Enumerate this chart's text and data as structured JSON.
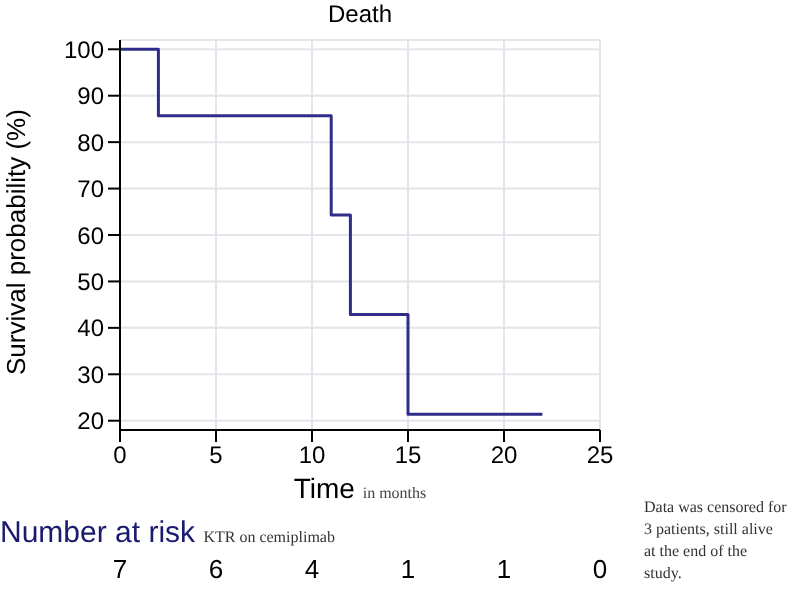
{
  "chart_data": {
    "type": "step",
    "title": "Death",
    "xlabel": "Time",
    "ylabel": "Survival probability (%)",
    "x": [
      0,
      2,
      11,
      12,
      15,
      22
    ],
    "series": [
      {
        "color": "#2e2e8a",
        "values": [
          100,
          85.7,
          64.3,
          42.9,
          21.4,
          21.4
        ]
      }
    ],
    "xlim": [
      0,
      25
    ],
    "xticks": [
      0,
      5,
      10,
      15,
      20,
      25
    ],
    "ylim": [
      18,
      102
    ],
    "yticks": [
      20,
      30,
      40,
      50,
      60,
      70,
      80,
      90,
      100
    ],
    "grid": true,
    "marker": "none",
    "annotations": [
      "in months",
      "Number at risk",
      "KTR on cemiplimab",
      "Data was censored for 3 patients, still alive at the end of the study.",
      "7",
      "6",
      "4",
      "1",
      "1",
      "0"
    ]
  }
}
